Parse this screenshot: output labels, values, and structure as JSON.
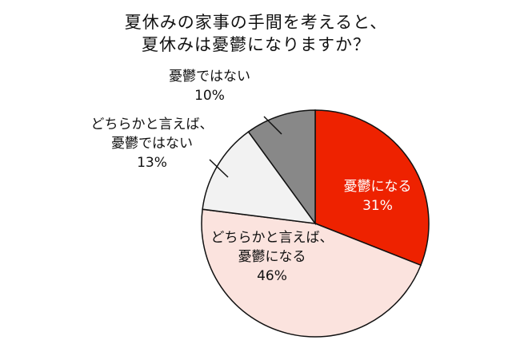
{
  "chart_data": {
    "type": "pie",
    "title_lines": [
      "夏休みの家事の手間を考えると、",
      "夏休みは憂鬱になりますか？"
    ],
    "slices": [
      {
        "label_lines": [
          "憂鬱になる"
        ],
        "value": 31,
        "value_label": "31%",
        "color": "#ee2200",
        "text_color": "#ffffff"
      },
      {
        "label_lines": [
          "どちらかと言えば、",
          "憂鬱になる"
        ],
        "value": 46,
        "value_label": "46%",
        "color": "#fbe3de",
        "text_color": "#111111"
      },
      {
        "label_lines": [
          "どちらかと言えば、",
          "憂鬱ではない"
        ],
        "value": 13,
        "value_label": "13%",
        "color": "#f2f2f2",
        "text_color": "#111111"
      },
      {
        "label_lines": [
          "憂鬱ではない"
        ],
        "value": 10,
        "value_label": "10%",
        "color": "#888888",
        "text_color": "#111111"
      }
    ],
    "start": "12 o'clock",
    "direction": "clockwise",
    "legend": "none"
  }
}
